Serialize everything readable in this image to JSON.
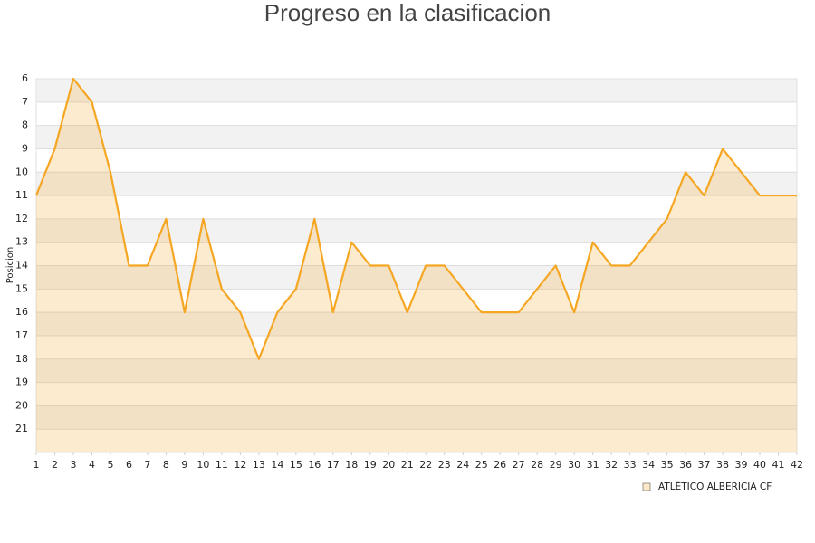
{
  "chart_data": {
    "type": "line",
    "title": "Progreso en la clasificacion",
    "y_label": "Posicion",
    "x": [
      1,
      2,
      3,
      4,
      5,
      6,
      7,
      8,
      9,
      10,
      11,
      12,
      13,
      14,
      15,
      16,
      17,
      18,
      19,
      20,
      21,
      22,
      23,
      24,
      25,
      26,
      27,
      28,
      29,
      30,
      31,
      32,
      33,
      34,
      35,
      36,
      37,
      38,
      39,
      40,
      41,
      42
    ],
    "series": [
      {
        "name": "ATLÉTICO ALBERICIA CF",
        "color": "#f5a623",
        "values": [
          11,
          9,
          6,
          7,
          10,
          14,
          14,
          12,
          16,
          12,
          15,
          16,
          18,
          16,
          15,
          12,
          16,
          13,
          14,
          14,
          16,
          14,
          14,
          15,
          16,
          16,
          16,
          15,
          14,
          16,
          13,
          14,
          14,
          13,
          12,
          10,
          11,
          9,
          10,
          11,
          11,
          11
        ]
      }
    ],
    "xlim": [
      1,
      42
    ],
    "xticks": [
      1,
      2,
      3,
      4,
      5,
      6,
      7,
      8,
      9,
      10,
      11,
      12,
      13,
      14,
      15,
      16,
      17,
      18,
      19,
      20,
      21,
      22,
      23,
      24,
      25,
      26,
      27,
      28,
      29,
      30,
      31,
      32,
      33,
      34,
      35,
      36,
      37,
      38,
      39,
      40,
      41,
      42
    ],
    "ylim": [
      22,
      6
    ],
    "yticks": [
      6,
      7,
      8,
      9,
      10,
      11,
      12,
      13,
      14,
      15,
      16,
      17,
      18,
      19,
      20,
      21
    ],
    "grid": true,
    "legend": "bottom-right"
  }
}
